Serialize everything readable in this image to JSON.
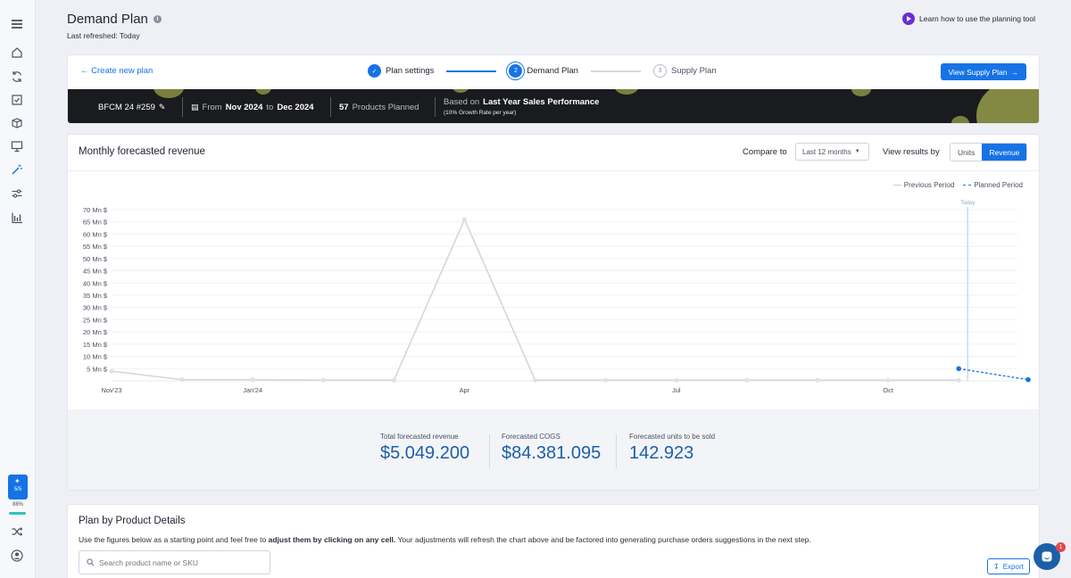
{
  "header": {
    "title": "Demand Plan",
    "last_refreshed": "Last refreshed: Today",
    "learn_link": "Learn how to use the planning tool"
  },
  "sidebar": {
    "icons": [
      "menu-icon",
      "home-icon",
      "refresh-icon",
      "checklist-icon",
      "boxes-icon",
      "presentation-icon",
      "wand-icon",
      "sliders-icon",
      "bar-chart-icon"
    ],
    "progress_label": "5/5",
    "progress_pct": "88%",
    "progress_fraction": 0.88
  },
  "stepper": {
    "create_link": "Create new plan",
    "steps": [
      {
        "num": "1",
        "label": "Plan settings",
        "state": "done"
      },
      {
        "num": "2",
        "label": "Demand Plan",
        "state": "active"
      },
      {
        "num": "3",
        "label": "Supply Plan",
        "state": "pending"
      }
    ],
    "view_supply_button": "View Supply Plan"
  },
  "plan_bar": {
    "plan_name": "BFCM 24 #259",
    "from_label": "From",
    "from_value": "Nov 2024",
    "to_label": "to",
    "to_value": "Dec 2024",
    "products_count": "57",
    "products_label": "Products Planned",
    "based_on_label": "Based on",
    "based_on_value": "Last Year Sales Performance",
    "growth_note": "(10% Growth Rate per year)"
  },
  "chart_card": {
    "title": "Monthly forecasted revenue",
    "compare_label": "Compare to",
    "compare_value": "Last 12 months",
    "view_label": "View results by",
    "toggle_units": "Units",
    "toggle_revenue": "Revenue",
    "legend_previous": "Previous Period",
    "legend_planned": "Planned Period",
    "today_label": "Today"
  },
  "chart_data": {
    "type": "line",
    "ylabel": "",
    "xlabel": "",
    "ylim": [
      0,
      70
    ],
    "y_ticks": [
      "5 Mn $",
      "10 Mn $",
      "15 Mn $",
      "20 Mn $",
      "25 Mn $",
      "30 Mn $",
      "35 Mn $",
      "40 Mn $",
      "45 Mn $",
      "50 Mn $",
      "55 Mn $",
      "60 Mn $",
      "65 Mn $",
      "70 Mn $"
    ],
    "y_tick_values": [
      5,
      10,
      15,
      20,
      25,
      30,
      35,
      40,
      45,
      50,
      55,
      60,
      65,
      70
    ],
    "x_tick_labels": [
      {
        "label": "Nov'23",
        "index": 0
      },
      {
        "label": "Jan'24",
        "index": 2
      },
      {
        "label": "Apr",
        "index": 5
      },
      {
        "label": "Jul",
        "index": 8
      },
      {
        "label": "Oct",
        "index": 11
      }
    ],
    "series": [
      {
        "name": "Previous Period",
        "values": [
          4,
          0.5,
          0.5,
          0.3,
          0.3,
          66,
          0.3,
          0.3,
          0.3,
          0.3,
          0.3,
          0.3,
          0.3
        ]
      },
      {
        "name": "Planned Period",
        "start_index": 12,
        "values": [
          5,
          0.5
        ]
      }
    ],
    "today_index": 12,
    "grid": true,
    "legend_position": "top-right"
  },
  "kpis": [
    {
      "label": "Total forecasted revenue",
      "value": "$5.049.200"
    },
    {
      "label": "Forecasted COGS",
      "value": "$84.381.095"
    },
    {
      "label": "Forecasted units to be sold",
      "value": "142.923"
    }
  ],
  "details": {
    "title": "Plan by Product Details",
    "desc_prefix": "Use the figures below as a starting point and feel free to ",
    "desc_bold": "adjust them by clicking on any cell.",
    "desc_suffix": " Your adjustments will refresh the chart above and be factored into generating purchase orders suggestions in the next step.",
    "search_placeholder": "Search product name or SKU",
    "export_label": "Export"
  },
  "chat": {
    "badge": "1"
  },
  "colors": {
    "accent": "#1673e6",
    "previous_line": "#d3d6dc",
    "planned_line": "#1673e6",
    "kpi_value": "#1c5fa8"
  }
}
